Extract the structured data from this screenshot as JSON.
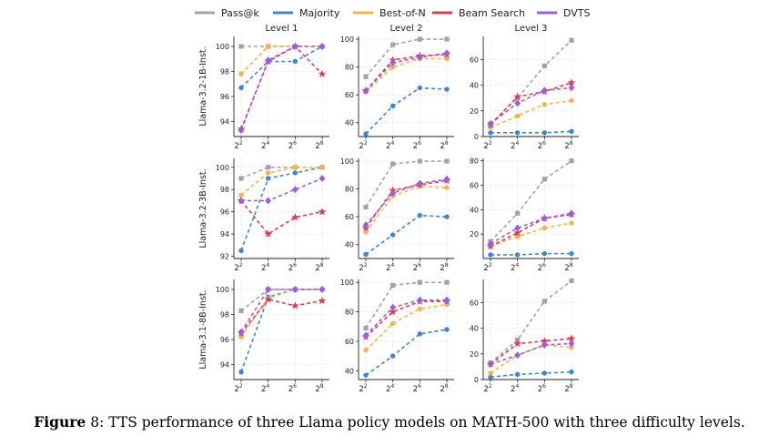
{
  "caption": {
    "figure_label": "Figure",
    "figure_number": "8",
    "text": ": TTS performance of three Llama policy models on MATH-500 with three difficulty levels."
  },
  "legend": [
    {
      "name": "Pass@k",
      "color": "#a3a3a3",
      "marker": "square"
    },
    {
      "name": "Majority",
      "color": "#3a86d9",
      "marker": "circle"
    },
    {
      "name": "Best-of-N",
      "color": "#f7b346",
      "marker": "circle"
    },
    {
      "name": "Beam Search",
      "color": "#e6394a",
      "marker": "star"
    },
    {
      "name": "DVTS",
      "color": "#9b5de5",
      "marker": "diamond"
    }
  ],
  "chart_data": [
    {
      "type": "line",
      "row_label": "Llama-3.2-1B-Inst.",
      "title": "Level 1",
      "x_tick_labels": [
        "2^2",
        "2^4",
        "2^6",
        "2^8"
      ],
      "y_ticks": [
        94,
        96,
        98,
        100
      ],
      "ylim": [
        92.8,
        100.8
      ],
      "grid": true,
      "series": [
        {
          "name": "Pass@k",
          "values": [
            100,
            100,
            100,
            100
          ]
        },
        {
          "name": "Majority",
          "values": [
            96.7,
            98.8,
            98.8,
            100
          ]
        },
        {
          "name": "Best-of-N",
          "values": [
            97.8,
            100,
            100,
            100
          ]
        },
        {
          "name": "Beam Search",
          "values": [
            93.4,
            98.8,
            100,
            97.8
          ]
        },
        {
          "name": "DVTS",
          "values": [
            93.3,
            98.9,
            100,
            100
          ]
        }
      ]
    },
    {
      "type": "line",
      "row_label": "Llama-3.2-1B-Inst.",
      "title": "Level 2",
      "x_tick_labels": [
        "2^2",
        "2^4",
        "2^6",
        "2^8"
      ],
      "y_ticks": [
        40,
        60,
        80,
        100
      ],
      "ylim": [
        30,
        102
      ],
      "grid": true,
      "series": [
        {
          "name": "Pass@k",
          "values": [
            73,
            96,
            100,
            100
          ]
        },
        {
          "name": "Majority",
          "values": [
            32,
            52,
            65,
            64
          ]
        },
        {
          "name": "Best-of-N",
          "values": [
            62,
            80,
            86,
            86
          ]
        },
        {
          "name": "Beam Search",
          "values": [
            63,
            85,
            88,
            89
          ]
        },
        {
          "name": "DVTS",
          "values": [
            63,
            83,
            87,
            90
          ]
        }
      ]
    },
    {
      "type": "line",
      "row_label": "Llama-3.2-1B-Inst.",
      "title": "Level 3",
      "x_tick_labels": [
        "2^2",
        "2^4",
        "2^6",
        "2^8"
      ],
      "y_ticks": [
        0,
        20,
        40,
        60
      ],
      "ylim": [
        0,
        78
      ],
      "grid": true,
      "series": [
        {
          "name": "Pass@k",
          "values": [
            10,
            30,
            55,
            75
          ]
        },
        {
          "name": "Majority",
          "values": [
            3,
            3,
            3,
            4
          ]
        },
        {
          "name": "Best-of-N",
          "values": [
            7,
            16,
            25,
            28
          ]
        },
        {
          "name": "Beam Search",
          "values": [
            9,
            31,
            35,
            42
          ]
        },
        {
          "name": "DVTS",
          "values": [
            10,
            26,
            36,
            38
          ]
        }
      ]
    },
    {
      "type": "line",
      "row_label": "Llama-3.2-3B-Inst.",
      "title": "",
      "x_tick_labels": [
        "2^2",
        "2^4",
        "2^6",
        "2^8"
      ],
      "y_ticks": [
        92,
        94,
        96,
        98,
        100
      ],
      "ylim": [
        91.8,
        100.8
      ],
      "grid": true,
      "series": [
        {
          "name": "Pass@k",
          "values": [
            99,
            100,
            100,
            100
          ]
        },
        {
          "name": "Majority",
          "values": [
            92.5,
            99,
            99.5,
            100
          ]
        },
        {
          "name": "Best-of-N",
          "values": [
            97.5,
            99.5,
            100,
            100
          ]
        },
        {
          "name": "Beam Search",
          "values": [
            97,
            94,
            95.5,
            96
          ]
        },
        {
          "name": "DVTS",
          "values": [
            97,
            97,
            98,
            99
          ]
        }
      ]
    },
    {
      "type": "line",
      "row_label": "Llama-3.2-3B-Inst.",
      "title": "",
      "x_tick_labels": [
        "2^2",
        "2^4",
        "2^6",
        "2^8"
      ],
      "y_ticks": [
        40,
        60,
        80,
        100
      ],
      "ylim": [
        30,
        102
      ],
      "grid": true,
      "series": [
        {
          "name": "Pass@k",
          "values": [
            67,
            98,
            100,
            100
          ]
        },
        {
          "name": "Majority",
          "values": [
            33,
            47,
            61,
            60
          ]
        },
        {
          "name": "Best-of-N",
          "values": [
            49,
            75,
            82,
            81
          ]
        },
        {
          "name": "Beam Search",
          "values": [
            52,
            79,
            83,
            86
          ]
        },
        {
          "name": "DVTS",
          "values": [
            54,
            77,
            84,
            87
          ]
        }
      ]
    },
    {
      "type": "line",
      "row_label": "Llama-3.2-3B-Inst.",
      "title": "",
      "x_tick_labels": [
        "2^2",
        "2^4",
        "2^6",
        "2^8"
      ],
      "y_ticks": [
        20,
        40,
        60,
        80
      ],
      "ylim": [
        0,
        82
      ],
      "grid": true,
      "series": [
        {
          "name": "Pass@k",
          "values": [
            14,
            37,
            65,
            80
          ]
        },
        {
          "name": "Majority",
          "values": [
            3,
            3,
            4,
            4
          ]
        },
        {
          "name": "Best-of-N",
          "values": [
            10,
            18,
            25,
            29
          ]
        },
        {
          "name": "Beam Search",
          "values": [
            10,
            21,
            33,
            36
          ]
        },
        {
          "name": "DVTS",
          "values": [
            12,
            25,
            33,
            37
          ]
        }
      ]
    },
    {
      "type": "line",
      "row_label": "Llama-3.1-8B-Inst.",
      "title": "",
      "x_tick_labels": [
        "2^2",
        "2^4",
        "2^6",
        "2^8"
      ],
      "y_ticks": [
        94,
        96,
        98,
        100
      ],
      "ylim": [
        92.8,
        100.8
      ],
      "grid": true,
      "series": [
        {
          "name": "Pass@k",
          "values": [
            98.3,
            100,
            100,
            100
          ]
        },
        {
          "name": "Majority",
          "values": [
            93.4,
            99.4,
            100,
            100
          ]
        },
        {
          "name": "Best-of-N",
          "values": [
            96.2,
            99.3,
            100,
            100
          ]
        },
        {
          "name": "Beam Search",
          "values": [
            96.5,
            99.2,
            98.7,
            99.1
          ]
        },
        {
          "name": "DVTS",
          "values": [
            96.6,
            100,
            100,
            100
          ]
        }
      ]
    },
    {
      "type": "line",
      "row_label": "Llama-3.1-8B-Inst.",
      "title": "",
      "x_tick_labels": [
        "2^2",
        "2^4",
        "2^6",
        "2^8"
      ],
      "y_ticks": [
        40,
        60,
        80,
        100
      ],
      "ylim": [
        34,
        102
      ],
      "grid": true,
      "series": [
        {
          "name": "Pass@k",
          "values": [
            69,
            98,
            100,
            100
          ]
        },
        {
          "name": "Majority",
          "values": [
            37,
            50,
            65,
            68
          ]
        },
        {
          "name": "Best-of-N",
          "values": [
            54,
            72,
            82,
            85
          ]
        },
        {
          "name": "Beam Search",
          "values": [
            63,
            80,
            87,
            87
          ]
        },
        {
          "name": "DVTS",
          "values": [
            64,
            83,
            88,
            88
          ]
        }
      ]
    },
    {
      "type": "line",
      "row_label": "Llama-3.1-8B-Inst.",
      "title": "",
      "x_tick_labels": [
        "2^2",
        "2^4",
        "2^6",
        "2^8"
      ],
      "y_ticks": [
        0,
        20,
        40,
        60
      ],
      "ylim": [
        0,
        78
      ],
      "grid": true,
      "series": [
        {
          "name": "Pass@k",
          "values": [
            13,
            31,
            61,
            77
          ]
        },
        {
          "name": "Majority",
          "values": [
            2,
            4,
            5,
            6
          ]
        },
        {
          "name": "Best-of-N",
          "values": [
            5,
            19,
            27,
            25
          ]
        },
        {
          "name": "Beam Search",
          "values": [
            12,
            28,
            30,
            32
          ]
        },
        {
          "name": "DVTS",
          "values": [
            12,
            19,
            27,
            28
          ]
        }
      ]
    }
  ]
}
